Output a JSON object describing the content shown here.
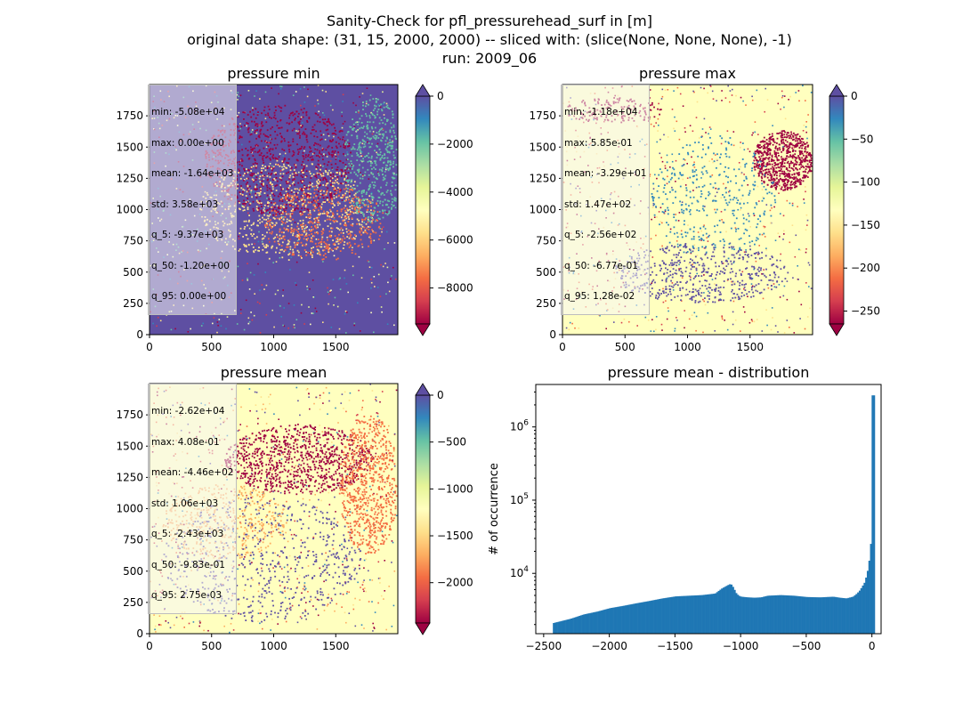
{
  "figure": {
    "suptitle_lines": [
      "Sanity-Check for pfl_pressurehead_surf in [m]",
      "original data shape: (31, 15, 2000, 2000) -- sliced with: (slice(None, None, None), -1)",
      "run: 2009_06"
    ]
  },
  "colors": {
    "spectral": [
      "#9e0142",
      "#d53e4f",
      "#f46d43",
      "#fdae61",
      "#fee08b",
      "#ffffbf",
      "#e6f598",
      "#abdda4",
      "#66c2a5",
      "#3288bd",
      "#5e4fa2"
    ],
    "hist_bar": "#1f77b4",
    "stats_box_border": "#bdbdbd"
  },
  "chart_data": [
    {
      "type": "heatmap",
      "title": "pressure min",
      "colormap": "Spectral",
      "xlim": [
        0,
        2000
      ],
      "ylim": [
        0,
        2000
      ],
      "xticks": [
        0,
        500,
        1000,
        1500
      ],
      "yticks": [
        0,
        250,
        500,
        750,
        1000,
        1250,
        1500,
        1750
      ],
      "colorbar": {
        "range": [
          -9500,
          0
        ],
        "ticks": [
          0,
          -2000,
          -4000,
          -6000,
          -8000
        ],
        "extend": "both"
      },
      "stats": [
        "min: -5.08e+04",
        "max: 0.00e+00",
        "mean: -1.64e+03",
        "std: 3.58e+03",
        "q_5: -9.37e+03",
        "q_50: -1.20e+00",
        "q_95: 0.00e+00"
      ]
    },
    {
      "type": "heatmap",
      "title": "pressure max",
      "colormap": "Spectral",
      "xlim": [
        0,
        2000
      ],
      "ylim": [
        0,
        2000
      ],
      "xticks": [
        0,
        500,
        1000,
        1500
      ],
      "yticks": [
        0,
        250,
        500,
        750,
        1000,
        1250,
        1500,
        1750
      ],
      "colorbar": {
        "range": [
          -265,
          0
        ],
        "ticks": [
          0,
          -50,
          -100,
          -150,
          -200,
          -250
        ],
        "extend": "both"
      },
      "stats": [
        "min: -1.18e+04",
        "max: 5.85e-01",
        "mean: -3.29e+01",
        "std: 1.47e+02",
        "q_5: -2.56e+02",
        "q_50: -6.77e-01",
        "q_95: 1.28e-02"
      ]
    },
    {
      "type": "heatmap",
      "title": "pressure mean",
      "colormap": "Spectral",
      "xlim": [
        0,
        2000
      ],
      "ylim": [
        0,
        2000
      ],
      "xticks": [
        0,
        500,
        1000,
        1500
      ],
      "yticks": [
        0,
        250,
        500,
        750,
        1000,
        1250,
        1500,
        1750
      ],
      "colorbar": {
        "range": [
          -2430,
          0
        ],
        "ticks": [
          0,
          -500,
          -1000,
          -1500,
          -2000
        ],
        "extend": "both"
      },
      "stats": [
        "min: -2.62e+04",
        "max: 4.08e-01",
        "mean: -4.46e+02",
        "std: 1.06e+03",
        "q_5: -2.43e+03",
        "q_50: -9.83e-01",
        "q_95: 2.75e-03"
      ]
    },
    {
      "type": "bar",
      "title": "pressure mean - distribution",
      "xlabel": "",
      "ylabel": "# of occurrence",
      "yscale": "log",
      "xlim": [
        -2560,
        70
      ],
      "ylim": [
        1500,
        3800000
      ],
      "xticks": [
        -2500,
        -2000,
        -1500,
        -1000,
        -500,
        0
      ],
      "yticks": [
        10000,
        100000,
        1000000
      ],
      "ytick_labels": [
        "10^4",
        "10^5",
        "10^6"
      ],
      "bin_width": 12.2,
      "bins": {
        "x_start": [
          -2430,
          -2300,
          -2200,
          -2100,
          -2000,
          -1900,
          -1800,
          -1700,
          -1600,
          -1500,
          -1400,
          -1300,
          -1200,
          -1150,
          -1100,
          -1080,
          -1060,
          -1040,
          -1020,
          -1000,
          -950,
          -900,
          -850,
          -800,
          -700,
          -600,
          -500,
          -400,
          -300,
          -250,
          -200,
          -150,
          -120,
          -100,
          -80,
          -60,
          -50,
          -40,
          -30,
          -20,
          -10,
          0
        ],
        "counts": [
          2100,
          2400,
          2750,
          3000,
          3350,
          3600,
          3900,
          4200,
          4550,
          4850,
          4950,
          5050,
          5300,
          6200,
          6950,
          7200,
          6400,
          5400,
          4950,
          4800,
          4700,
          4650,
          4700,
          4950,
          5050,
          4950,
          4750,
          4700,
          4800,
          4650,
          4550,
          4800,
          5300,
          5800,
          6600,
          7600,
          8900,
          10500,
          13500,
          18000,
          33000,
          2700000
        ]
      }
    }
  ]
}
